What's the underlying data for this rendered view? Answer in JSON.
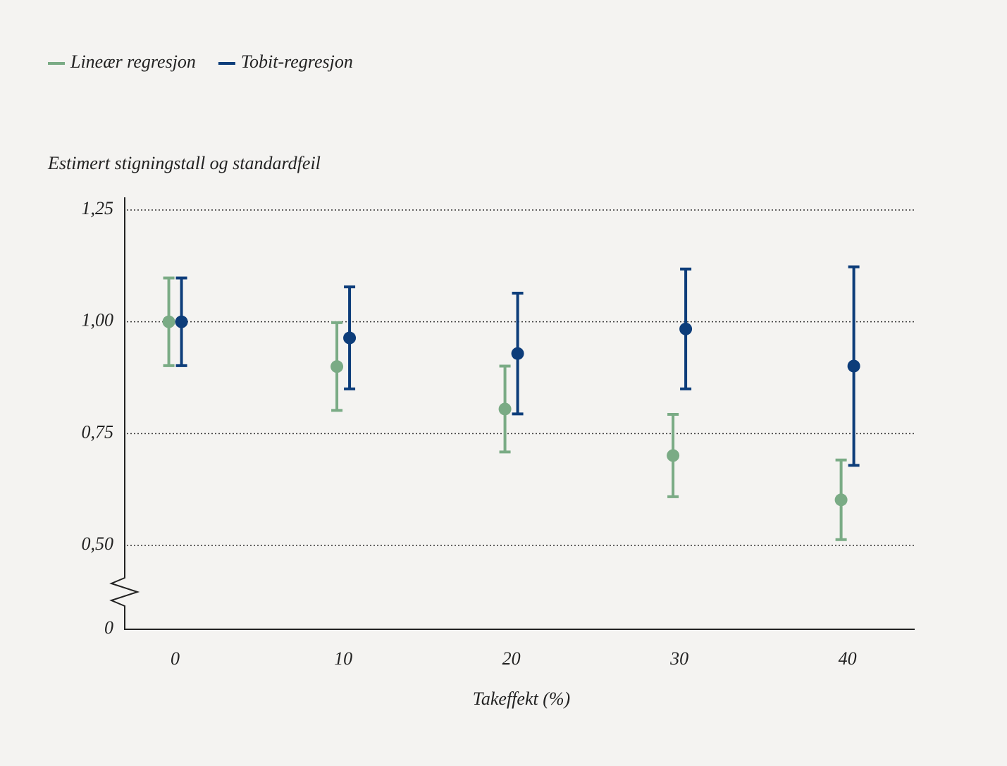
{
  "chart_data": {
    "type": "errorbar",
    "y_label": "Estimert stigningstall og standardfeil",
    "x_label": "Takeffekt (%)",
    "x": [
      0,
      10,
      20,
      30,
      40
    ],
    "xticks": [
      0,
      10,
      20,
      30,
      40
    ],
    "xlim": [
      -3,
      44
    ],
    "ylim": [
      0,
      1.25
    ],
    "yticks": [
      0,
      {
        "value": 0.5,
        "label": "0,50"
      },
      {
        "value": 0.75,
        "label": "0,75"
      },
      {
        "value": 1.0,
        "label": "1,00"
      },
      {
        "value": 1.25,
        "label": "1,25"
      }
    ],
    "axis_break": true,
    "grid": true,
    "legend": "top-left",
    "series": [
      {
        "name": "Lineær regresjon",
        "color": "#7aab85",
        "values": [
          1.0,
          0.9,
          0.805,
          0.701,
          0.602
        ],
        "errors": [
          0.098,
          0.098,
          0.096,
          0.092,
          0.089
        ]
      },
      {
        "name": "Tobit-regresjon",
        "color": "#0d3d7a",
        "values": [
          1.0,
          0.964,
          0.929,
          0.984,
          0.901
        ],
        "errors": [
          0.098,
          0.114,
          0.135,
          0.134,
          0.222
        ]
      }
    ]
  }
}
